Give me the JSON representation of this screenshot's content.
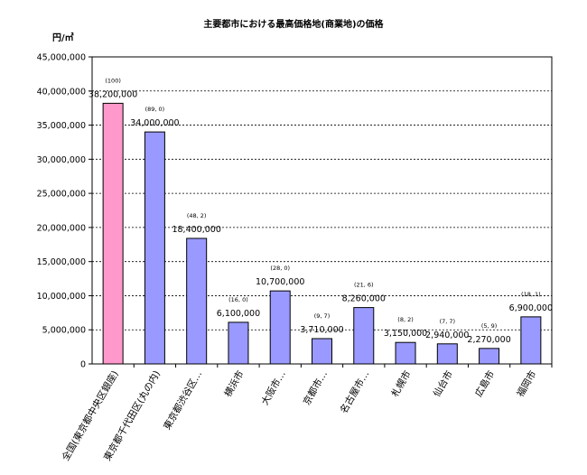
{
  "chart_data": {
    "type": "bar",
    "title": "主要都市における最高価格地(商業地)の価格",
    "ylabel": "円/㎡",
    "xlabel": "",
    "ylim": [
      0,
      45000000
    ],
    "ytick_labels": [
      "0",
      "5,000,000",
      "10,000,000",
      "15,000,000",
      "20,000,000",
      "25,000,000",
      "30,000,000",
      "35,000,000",
      "40,000,000",
      "45,000,000"
    ],
    "grid": true,
    "categories": [
      "全国(東京都中央区銀座)",
      "東京都千代田区(丸の内)",
      "東京都渋谷区…",
      "横浜市",
      "大阪市…",
      "京都市…",
      "名古屋市…",
      "札幌市",
      "仙台市",
      "広島市",
      "福岡市"
    ],
    "values": [
      38200000,
      34000000,
      18400000,
      6100000,
      10700000,
      3710000,
      8260000,
      3150000,
      2940000,
      2270000,
      6900000
    ],
    "value_labels": [
      "38,200,000",
      "34,000,000",
      "18,400,000",
      "6,100,000",
      "10,700,000",
      "3,710,000",
      "8,260,000",
      "3,150,000",
      "2,940,000",
      "2,270,000",
      "6,900,000"
    ],
    "index_labels": [
      "(100)",
      "(89, 0)",
      "(48, 2)",
      "(16, 0)",
      "(28, 0)",
      "(9, 7)",
      "(21, 6)",
      "(8, 2)",
      "(7, 7)",
      "(5, 9)",
      "(18, 1)"
    ],
    "colors": {
      "highlight": "#ff99cc",
      "bar": "#9999ff",
      "outline": "#000000",
      "grid": "#000000"
    },
    "highlight_index": 0
  }
}
